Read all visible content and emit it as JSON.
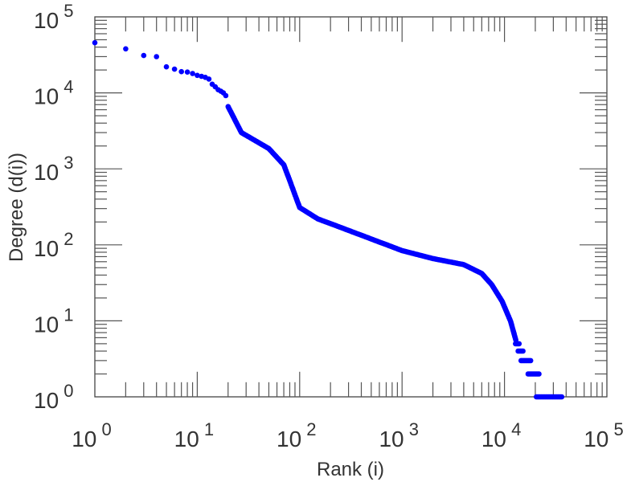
{
  "chart_data": {
    "type": "scatter",
    "title": "",
    "xlabel": "Rank (i)",
    "ylabel": "Degree (d(i))",
    "xscale": "log",
    "yscale": "log",
    "xlim": [
      1,
      100000
    ],
    "ylim": [
      1,
      100000
    ],
    "x_tick_labels": [
      {
        "base": "10",
        "exp": "0"
      },
      {
        "base": "10",
        "exp": "1"
      },
      {
        "base": "10",
        "exp": "2"
      },
      {
        "base": "10",
        "exp": "3"
      },
      {
        "base": "10",
        "exp": "4"
      },
      {
        "base": "10",
        "exp": "5"
      }
    ],
    "y_tick_labels": [
      {
        "base": "10",
        "exp": "0"
      },
      {
        "base": "10",
        "exp": "1"
      },
      {
        "base": "10",
        "exp": "2"
      },
      {
        "base": "10",
        "exp": "3"
      },
      {
        "base": "10",
        "exp": "4"
      },
      {
        "base": "10",
        "exp": "5"
      }
    ],
    "marker_color": "#0000ff",
    "grid": false,
    "points_top_ranks": [
      [
        1,
        45700
      ],
      [
        2,
        38000
      ],
      [
        3,
        31000
      ],
      [
        4,
        30000
      ],
      [
        5,
        22000
      ],
      [
        6,
        20500
      ],
      [
        7,
        19000
      ],
      [
        8,
        18800
      ],
      [
        9,
        18000
      ],
      [
        10,
        17000
      ],
      [
        11,
        16500
      ],
      [
        12,
        16000
      ],
      [
        13,
        15200
      ],
      [
        14,
        13000
      ],
      [
        15,
        12000
      ],
      [
        16,
        11000
      ],
      [
        17,
        10500
      ],
      [
        18,
        10000
      ],
      [
        19,
        9200
      ]
    ],
    "curve_anchors": [
      [
        20,
        6600
      ],
      [
        27,
        3000
      ],
      [
        50,
        1850
      ],
      [
        70,
        1130
      ],
      [
        80,
        700
      ],
      [
        100,
        310
      ],
      [
        150,
        220
      ],
      [
        300,
        155
      ],
      [
        1000,
        84
      ],
      [
        2000,
        66
      ],
      [
        4000,
        55
      ],
      [
        6000,
        42
      ],
      [
        7500,
        30
      ],
      [
        9500,
        18
      ],
      [
        11500,
        9.8
      ],
      [
        13000,
        5.4
      ]
    ],
    "tail_steps": [
      {
        "degree": 5,
        "rank_from": 12800,
        "rank_to": 14000
      },
      {
        "degree": 4,
        "rank_from": 13600,
        "rank_to": 15500
      },
      {
        "degree": 3,
        "rank_from": 14500,
        "rank_to": 18100
      },
      {
        "degree": 2,
        "rank_from": 17000,
        "rank_to": 22000
      },
      {
        "degree": 1,
        "rank_from": 20500,
        "rank_to": 36500
      }
    ]
  }
}
